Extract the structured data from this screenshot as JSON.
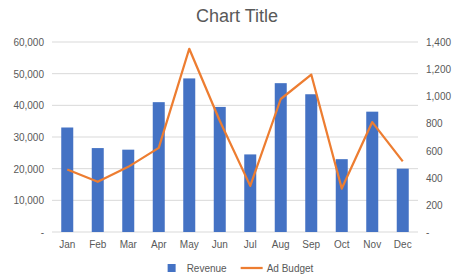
{
  "chart_data": {
    "type": "bar",
    "title": "Chart Title",
    "categories": [
      "Jan",
      "Feb",
      "Mar",
      "Apr",
      "May",
      "Jun",
      "Jul",
      "Aug",
      "Sep",
      "Oct",
      "Nov",
      "Dec"
    ],
    "series": [
      {
        "name": "Revenue",
        "type": "bar",
        "color": "#4472c4",
        "values": [
          33000,
          26500,
          26000,
          41000,
          48500,
          39500,
          24500,
          47000,
          43500,
          23000,
          38000,
          20000
        ]
      },
      {
        "name": "Ad Budget",
        "type": "line",
        "color": "#ed7d31",
        "axis": "y2",
        "values": [
          460,
          370,
          480,
          620,
          1350,
          820,
          340,
          980,
          1160,
          320,
          810,
          520
        ]
      }
    ],
    "ylim": [
      0,
      60000
    ],
    "yticks": [
      {
        "value": 0,
        "label": "-"
      },
      {
        "value": 10000,
        "label": "10,000"
      },
      {
        "value": 20000,
        "label": "20,000"
      },
      {
        "value": 30000,
        "label": "30,000"
      },
      {
        "value": 40000,
        "label": "40,000"
      },
      {
        "value": 50000,
        "label": "50,000"
      },
      {
        "value": 60000,
        "label": "60,000"
      }
    ],
    "y2lim": [
      0,
      1400
    ],
    "y2ticks": [
      {
        "value": 0,
        "label": "-"
      },
      200,
      400,
      600,
      800,
      {
        "value": 1000,
        "label": "1,000"
      },
      {
        "value": 1200,
        "label": "1,200"
      },
      {
        "value": 1400,
        "label": "1,400"
      }
    ],
    "grid": true,
    "legend": "bottom"
  }
}
